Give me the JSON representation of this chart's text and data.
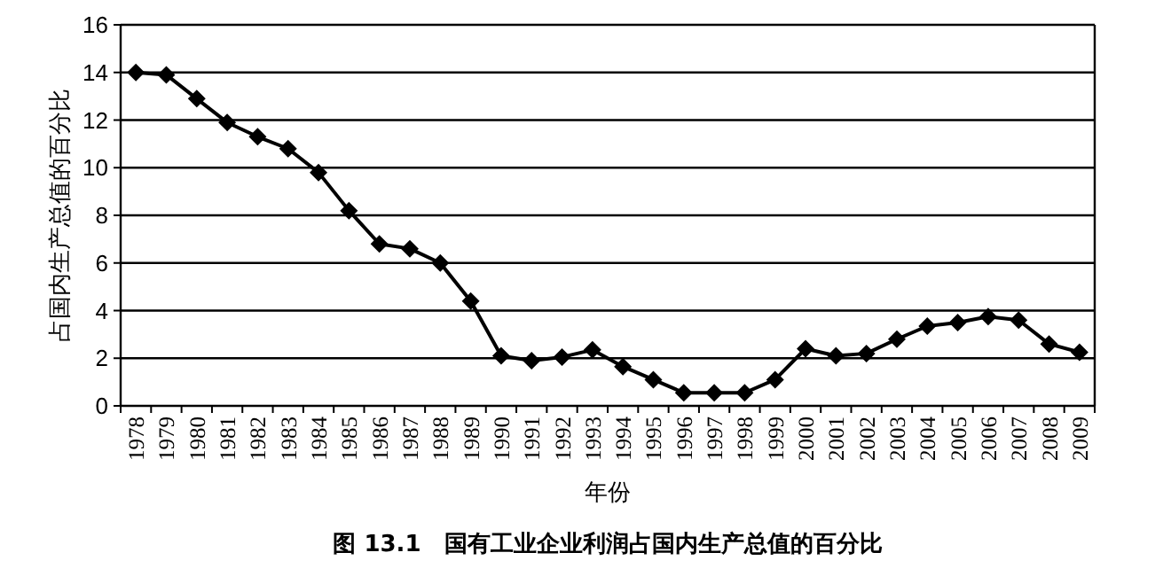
{
  "chart_data": {
    "type": "line",
    "title": "图 13.1　国有工业企业利润占国内生产总值的百分比",
    "xlabel": "年份",
    "ylabel": "占国内生产总值的百分比",
    "categories": [
      "1978",
      "1979",
      "1980",
      "1981",
      "1982",
      "1983",
      "1984",
      "1985",
      "1986",
      "1987",
      "1988",
      "1989",
      "1990",
      "1991",
      "1992",
      "1993",
      "1994",
      "1995",
      "1996",
      "1997",
      "1998",
      "1999",
      "2000",
      "2001",
      "2002",
      "2003",
      "2004",
      "2005",
      "2006",
      "2007",
      "2008",
      "2009"
    ],
    "series": [
      {
        "color": "#000000",
        "values": [
          14,
          13.9,
          12.9,
          11.9,
          11.3,
          10.8,
          9.8,
          8.2,
          6.8,
          6.6,
          6.0,
          4.4,
          2.1,
          1.9,
          2.05,
          2.35,
          1.65,
          1.1,
          0.55,
          0.55,
          0.55,
          1.1,
          2.4,
          2.1,
          2.2,
          2.8,
          3.35,
          3.5,
          3.75,
          3.6,
          2.6,
          2.25
        ]
      }
    ],
    "ylim": [
      0,
      16
    ],
    "yticks": [
      0,
      2,
      4,
      6,
      8,
      10,
      12,
      14,
      16
    ],
    "grid": "y",
    "marker": "diamond",
    "line_style": "solid"
  }
}
